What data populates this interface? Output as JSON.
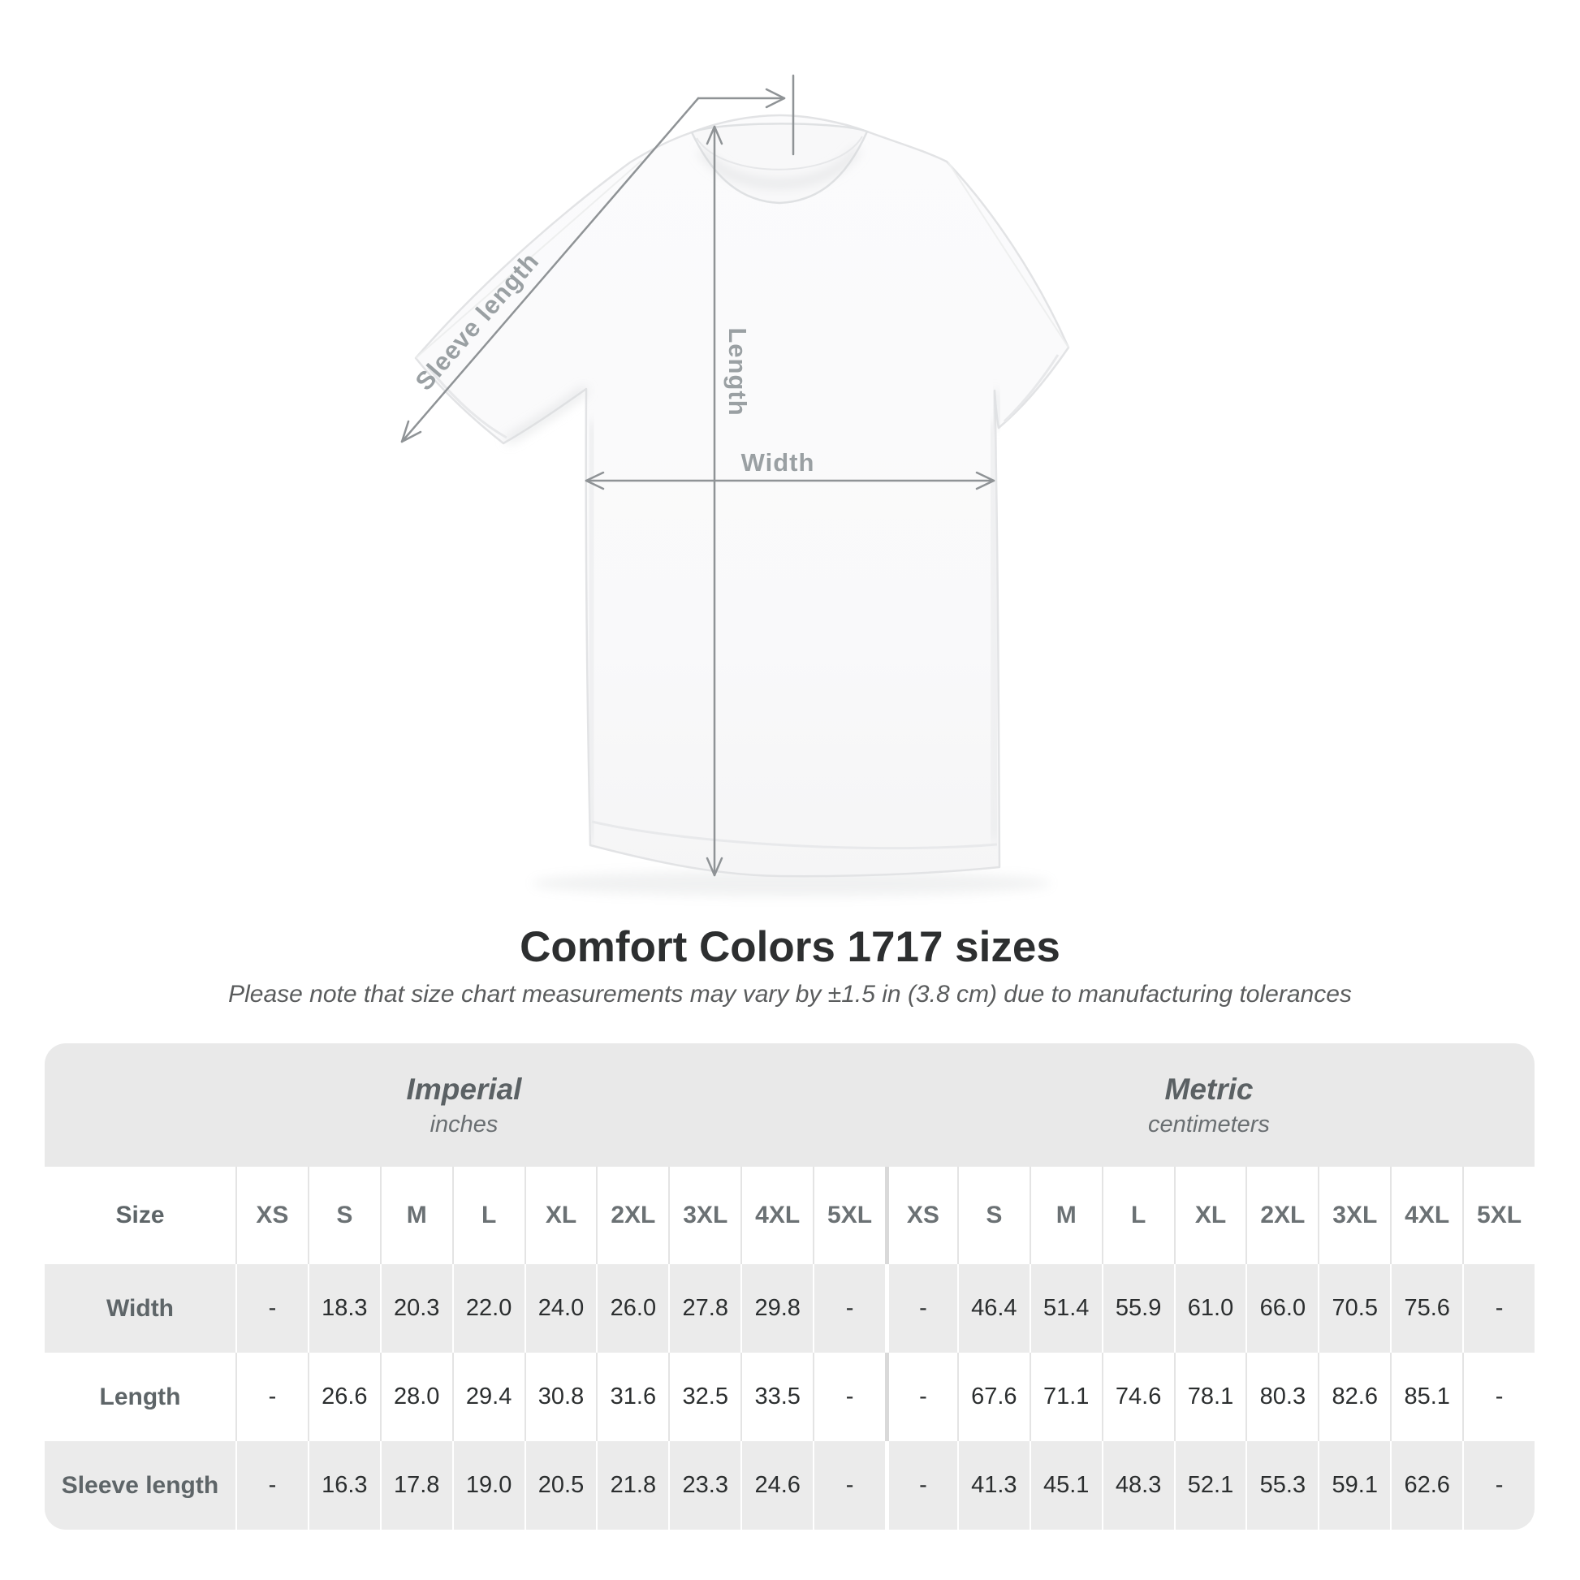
{
  "figure": {
    "sleeve_label": "Sleeve length",
    "length_label": "Length",
    "width_label": "Width"
  },
  "heading": {
    "title": "Comfort Colors 1717 sizes",
    "note": "Please note that size chart measurements may vary by ±1.5 in (3.8 cm) due to manufacturing tolerances"
  },
  "chart_data": {
    "type": "table",
    "title": "Comfort Colors 1717 sizes",
    "note": "Please note that size chart measurements may vary by ±1.5 in (3.8 cm) due to manufacturing tolerances",
    "size_column_label": "Size",
    "sizes": [
      "XS",
      "S",
      "M",
      "L",
      "XL",
      "2XL",
      "3XL",
      "4XL",
      "5XL"
    ],
    "group_headers": [
      {
        "label": "Imperial",
        "unit": "inches"
      },
      {
        "label": "Metric",
        "unit": "centimeters"
      }
    ],
    "rows": [
      {
        "label": "Width",
        "imperial": [
          "-",
          "18.3",
          "20.3",
          "22.0",
          "24.0",
          "26.0",
          "27.8",
          "29.8",
          "-"
        ],
        "metric": [
          "-",
          "46.4",
          "51.4",
          "55.9",
          "61.0",
          "66.0",
          "70.5",
          "75.6",
          "-"
        ]
      },
      {
        "label": "Length",
        "imperial": [
          "-",
          "26.6",
          "28.0",
          "29.4",
          "30.8",
          "31.6",
          "32.5",
          "33.5",
          "-"
        ],
        "metric": [
          "-",
          "67.6",
          "71.1",
          "74.6",
          "78.1",
          "80.3",
          "82.6",
          "85.1",
          "-"
        ]
      },
      {
        "label": "Sleeve length",
        "imperial": [
          "-",
          "16.3",
          "17.8",
          "19.0",
          "20.5",
          "21.8",
          "23.3",
          "24.6",
          "-"
        ],
        "metric": [
          "-",
          "41.3",
          "45.1",
          "48.3",
          "52.1",
          "55.3",
          "59.1",
          "62.6",
          "-"
        ]
      }
    ]
  },
  "colors": {
    "stripe_gray": "#ebebeb",
    "band_gray": "#e9e9e9",
    "dimension_line": "#8f9396",
    "dimension_label": "#9aa0a3",
    "header_text": "#6b7174",
    "value_text": "#2b2e2f",
    "title_text": "#2d2f30"
  }
}
